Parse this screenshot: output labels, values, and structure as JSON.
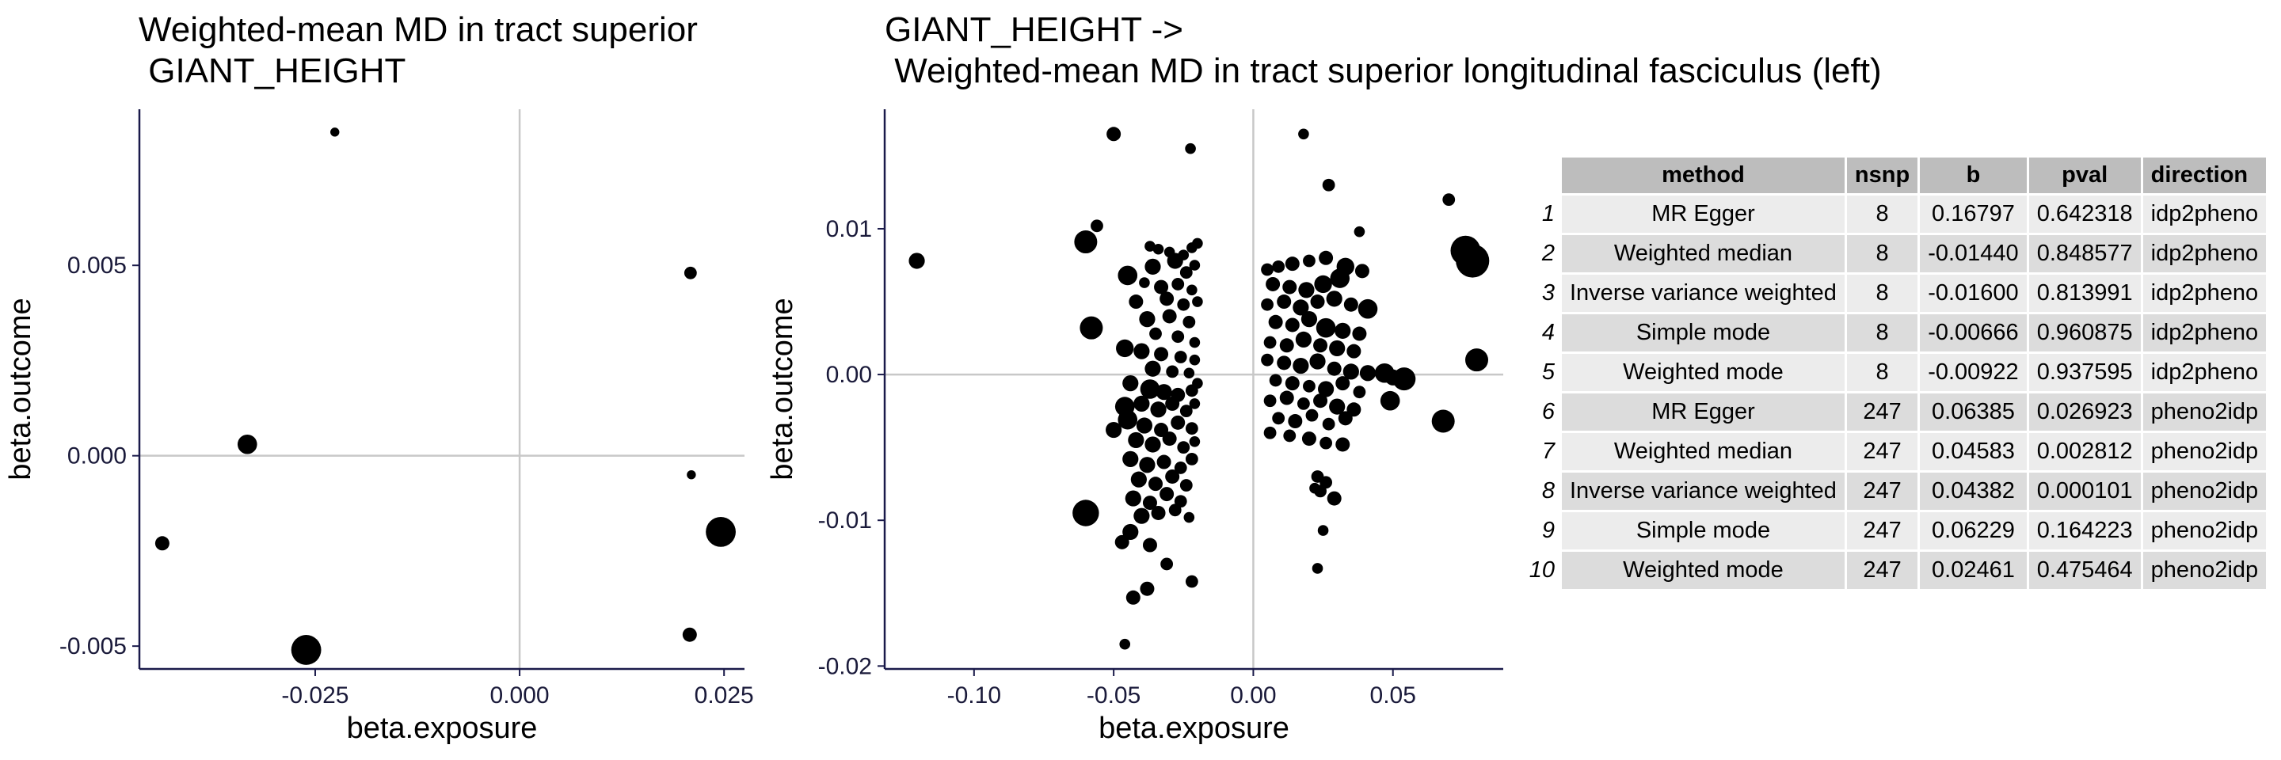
{
  "chart_data": [
    {
      "type": "scatter",
      "title": "Weighted-mean MD in tract superior\n GIANT_HEIGHT",
      "xlabel": "beta.exposure",
      "ylabel": "beta.outcome",
      "xlim": [
        -0.0465,
        0.0275
      ],
      "ylim": [
        -0.0056,
        0.0091
      ],
      "xticks": [
        -0.025,
        0.0,
        0.025
      ],
      "xtick_labels": [
        "-0.025",
        "0.000",
        "0.025"
      ],
      "yticks": [
        -0.005,
        0.0,
        0.005
      ],
      "ytick_labels": [
        "-0.005",
        "0.000",
        "0.005"
      ],
      "reference_lines": {
        "x": 0,
        "y": 0
      },
      "points": [
        {
          "x": -0.0226,
          "y": 0.0085,
          "size": 1
        },
        {
          "x": 0.0209,
          "y": 0.0048,
          "size": 2
        },
        {
          "x": -0.0333,
          "y": 0.0003,
          "size": 4
        },
        {
          "x": 0.021,
          "y": -0.0005,
          "size": 1
        },
        {
          "x": -0.0437,
          "y": -0.0023,
          "size": 2.5
        },
        {
          "x": 0.0246,
          "y": -0.002,
          "size": 7
        },
        {
          "x": 0.0208,
          "y": -0.0047,
          "size": 2.5
        },
        {
          "x": -0.0261,
          "y": -0.0051,
          "size": 7
        }
      ]
    },
    {
      "type": "scatter",
      "title": "GIANT_HEIGHT ->\n Weighted-mean MD in tract superior longitudinal fasciculus (left)",
      "xlabel": "beta.exposure",
      "ylabel": "beta.outcome",
      "xlim": [
        -0.132,
        0.0895
      ],
      "ylim": [
        -0.0202,
        0.0182
      ],
      "xticks": [
        -0.1,
        -0.05,
        0.0,
        0.05
      ],
      "xtick_labels": [
        "-0.10",
        "-0.05",
        "0.00",
        "0.05"
      ],
      "yticks": [
        -0.02,
        -0.01,
        0.0,
        0.01
      ],
      "ytick_labels": [
        "-0.02",
        "-0.01",
        "0.00",
        "0.01"
      ],
      "reference_lines": {
        "x": 0,
        "y": 0
      },
      "points": [
        {
          "x": -0.1205,
          "y": 0.0078,
          "size": 3
        },
        {
          "x": -0.05,
          "y": 0.0165,
          "size": 2.5
        },
        {
          "x": -0.0225,
          "y": 0.0155,
          "size": 1.5
        },
        {
          "x": 0.018,
          "y": 0.0165,
          "size": 1.5
        },
        {
          "x": 0.027,
          "y": 0.013,
          "size": 2
        },
        {
          "x": 0.07,
          "y": 0.012,
          "size": 2
        },
        {
          "x": -0.056,
          "y": 0.0102,
          "size": 2
        },
        {
          "x": -0.06,
          "y": 0.0091,
          "size": 5
        },
        {
          "x": 0.038,
          "y": 0.0098,
          "size": 1.5
        },
        {
          "x": 0.076,
          "y": 0.0085,
          "size": 7
        },
        {
          "x": 0.0785,
          "y": 0.0078,
          "size": 8
        },
        {
          "x": -0.058,
          "y": 0.0032,
          "size": 5
        },
        {
          "x": 0.08,
          "y": 0.001,
          "size": 5
        },
        {
          "x": -0.06,
          "y": -0.0095,
          "size": 6
        },
        {
          "x": 0.068,
          "y": -0.0032,
          "size": 5
        },
        {
          "x": 0.054,
          "y": -0.0003,
          "size": 5
        },
        {
          "x": 0.049,
          "y": -0.0018,
          "size": 4
        },
        {
          "x": 0.047,
          "y": 0.0001,
          "size": 4
        },
        {
          "x": 0.05,
          "y": -0.0002,
          "size": 3
        },
        {
          "x": -0.046,
          "y": -0.0185,
          "size": 1.5
        },
        {
          "x": -0.043,
          "y": -0.0153,
          "size": 2.5
        },
        {
          "x": -0.038,
          "y": -0.0147,
          "size": 2.5
        },
        {
          "x": -0.022,
          "y": -0.0142,
          "size": 2
        },
        {
          "x": -0.031,
          "y": -0.013,
          "size": 2
        },
        {
          "x": 0.023,
          "y": -0.0133,
          "size": 1.5
        },
        {
          "x": -0.047,
          "y": -0.0115,
          "size": 2.5
        },
        {
          "x": -0.044,
          "y": -0.0108,
          "size": 3
        },
        {
          "x": -0.037,
          "y": -0.0117,
          "size": 2.5
        },
        {
          "x": 0.025,
          "y": -0.0107,
          "size": 1.5
        },
        {
          "x": -0.05,
          "y": -0.0038,
          "size": 3
        },
        {
          "x": -0.039,
          "y": 0.0063,
          "size": 1.5
        },
        {
          "x": -0.037,
          "y": 0.0088,
          "size": 1.5
        },
        {
          "x": -0.034,
          "y": 0.0086,
          "size": 1.5
        },
        {
          "x": -0.03,
          "y": 0.0084,
          "size": 1.5
        },
        {
          "x": -0.025,
          "y": 0.0082,
          "size": 1.5
        },
        {
          "x": -0.022,
          "y": 0.0087,
          "size": 1.5
        },
        {
          "x": -0.02,
          "y": 0.009,
          "size": 1.5
        },
        {
          "x": -0.045,
          "y": 0.0068,
          "size": 4
        },
        {
          "x": -0.036,
          "y": 0.0074,
          "size": 3
        },
        {
          "x": -0.028,
          "y": 0.0078,
          "size": 3
        },
        {
          "x": -0.024,
          "y": 0.007,
          "size": 2
        },
        {
          "x": -0.021,
          "y": 0.0075,
          "size": 1.5
        },
        {
          "x": -0.033,
          "y": 0.006,
          "size": 2.5
        },
        {
          "x": -0.027,
          "y": 0.0062,
          "size": 2
        },
        {
          "x": -0.022,
          "y": 0.0058,
          "size": 1.5
        },
        {
          "x": -0.042,
          "y": 0.005,
          "size": 2.5
        },
        {
          "x": -0.031,
          "y": 0.0052,
          "size": 2.5
        },
        {
          "x": -0.025,
          "y": 0.0048,
          "size": 2
        },
        {
          "x": -0.02,
          "y": 0.005,
          "size": 1.5
        },
        {
          "x": -0.038,
          "y": 0.0038,
          "size": 3
        },
        {
          "x": -0.03,
          "y": 0.004,
          "size": 2.5
        },
        {
          "x": -0.023,
          "y": 0.0036,
          "size": 2
        },
        {
          "x": -0.035,
          "y": 0.0028,
          "size": 2
        },
        {
          "x": -0.027,
          "y": 0.0026,
          "size": 2
        },
        {
          "x": -0.021,
          "y": 0.0022,
          "size": 1.5
        },
        {
          "x": -0.046,
          "y": 0.0018,
          "size": 3.5
        },
        {
          "x": -0.04,
          "y": 0.0016,
          "size": 3
        },
        {
          "x": -0.033,
          "y": 0.0014,
          "size": 2.5
        },
        {
          "x": -0.026,
          "y": 0.0012,
          "size": 2
        },
        {
          "x": -0.021,
          "y": 0.001,
          "size": 1.5
        },
        {
          "x": -0.036,
          "y": 0.0004,
          "size": 3
        },
        {
          "x": -0.029,
          "y": 0.0002,
          "size": 2
        },
        {
          "x": -0.023,
          "y": 0.0001,
          "size": 1.5
        },
        {
          "x": -0.044,
          "y": -0.0006,
          "size": 3
        },
        {
          "x": -0.037,
          "y": -0.001,
          "size": 4
        },
        {
          "x": -0.032,
          "y": -0.0012,
          "size": 3
        },
        {
          "x": -0.027,
          "y": -0.0014,
          "size": 2.5
        },
        {
          "x": -0.022,
          "y": -0.0011,
          "size": 2
        },
        {
          "x": -0.02,
          "y": -0.0006,
          "size": 1.5
        },
        {
          "x": -0.046,
          "y": -0.0022,
          "size": 4
        },
        {
          "x": -0.04,
          "y": -0.002,
          "size": 3
        },
        {
          "x": -0.034,
          "y": -0.0024,
          "size": 3
        },
        {
          "x": -0.029,
          "y": -0.002,
          "size": 2.5
        },
        {
          "x": -0.024,
          "y": -0.0025,
          "size": 2
        },
        {
          "x": -0.021,
          "y": -0.002,
          "size": 1.5
        },
        {
          "x": -0.045,
          "y": -0.0031,
          "size": 4
        },
        {
          "x": -0.039,
          "y": -0.0035,
          "size": 3
        },
        {
          "x": -0.033,
          "y": -0.0038,
          "size": 2.5
        },
        {
          "x": -0.027,
          "y": -0.0033,
          "size": 2.5
        },
        {
          "x": -0.022,
          "y": -0.0037,
          "size": 2
        },
        {
          "x": -0.042,
          "y": -0.0045,
          "size": 3
        },
        {
          "x": -0.036,
          "y": -0.0048,
          "size": 3
        },
        {
          "x": -0.03,
          "y": -0.0044,
          "size": 2.5
        },
        {
          "x": -0.025,
          "y": -0.005,
          "size": 2
        },
        {
          "x": -0.021,
          "y": -0.0046,
          "size": 1.5
        },
        {
          "x": -0.044,
          "y": -0.0058,
          "size": 3
        },
        {
          "x": -0.038,
          "y": -0.0062,
          "size": 3
        },
        {
          "x": -0.032,
          "y": -0.006,
          "size": 2.5
        },
        {
          "x": -0.026,
          "y": -0.0064,
          "size": 2
        },
        {
          "x": -0.022,
          "y": -0.0058,
          "size": 2
        },
        {
          "x": -0.041,
          "y": -0.0072,
          "size": 3
        },
        {
          "x": -0.035,
          "y": -0.0075,
          "size": 2.5
        },
        {
          "x": -0.029,
          "y": -0.007,
          "size": 2.5
        },
        {
          "x": -0.024,
          "y": -0.0076,
          "size": 2
        },
        {
          "x": -0.043,
          "y": -0.0085,
          "size": 3
        },
        {
          "x": -0.037,
          "y": -0.0088,
          "size": 2.5
        },
        {
          "x": -0.031,
          "y": -0.0082,
          "size": 2.5
        },
        {
          "x": -0.026,
          "y": -0.0087,
          "size": 2
        },
        {
          "x": -0.04,
          "y": -0.0097,
          "size": 3
        },
        {
          "x": -0.034,
          "y": -0.0095,
          "size": 2.5
        },
        {
          "x": -0.028,
          "y": -0.0093,
          "size": 2
        },
        {
          "x": -0.023,
          "y": -0.0098,
          "size": 1.5
        },
        {
          "x": 0.005,
          "y": 0.0072,
          "size": 2
        },
        {
          "x": 0.009,
          "y": 0.0074,
          "size": 2
        },
        {
          "x": 0.014,
          "y": 0.0076,
          "size": 2.5
        },
        {
          "x": 0.02,
          "y": 0.0078,
          "size": 2
        },
        {
          "x": 0.026,
          "y": 0.008,
          "size": 2.5
        },
        {
          "x": 0.033,
          "y": 0.0074,
          "size": 3.5
        },
        {
          "x": 0.039,
          "y": 0.0071,
          "size": 2.5
        },
        {
          "x": 0.007,
          "y": 0.0062,
          "size": 2.5
        },
        {
          "x": 0.013,
          "y": 0.006,
          "size": 2.5
        },
        {
          "x": 0.019,
          "y": 0.0058,
          "size": 3
        },
        {
          "x": 0.025,
          "y": 0.0062,
          "size": 3.5
        },
        {
          "x": 0.031,
          "y": 0.0066,
          "size": 4
        },
        {
          "x": 0.005,
          "y": 0.0048,
          "size": 2
        },
        {
          "x": 0.011,
          "y": 0.005,
          "size": 2.5
        },
        {
          "x": 0.017,
          "y": 0.0046,
          "size": 3
        },
        {
          "x": 0.023,
          "y": 0.005,
          "size": 2.5
        },
        {
          "x": 0.029,
          "y": 0.0052,
          "size": 3
        },
        {
          "x": 0.035,
          "y": 0.0048,
          "size": 2.5
        },
        {
          "x": 0.041,
          "y": 0.0045,
          "size": 4
        },
        {
          "x": 0.008,
          "y": 0.0036,
          "size": 2.5
        },
        {
          "x": 0.014,
          "y": 0.0034,
          "size": 2.5
        },
        {
          "x": 0.02,
          "y": 0.0038,
          "size": 3
        },
        {
          "x": 0.026,
          "y": 0.0032,
          "size": 4
        },
        {
          "x": 0.032,
          "y": 0.003,
          "size": 3
        },
        {
          "x": 0.038,
          "y": 0.0028,
          "size": 2.5
        },
        {
          "x": 0.006,
          "y": 0.0022,
          "size": 2
        },
        {
          "x": 0.012,
          "y": 0.002,
          "size": 2.5
        },
        {
          "x": 0.018,
          "y": 0.0024,
          "size": 3
        },
        {
          "x": 0.024,
          "y": 0.002,
          "size": 2.5
        },
        {
          "x": 0.03,
          "y": 0.0018,
          "size": 3
        },
        {
          "x": 0.036,
          "y": 0.0016,
          "size": 2.5
        },
        {
          "x": 0.005,
          "y": 0.001,
          "size": 2
        },
        {
          "x": 0.011,
          "y": 0.0008,
          "size": 2.5
        },
        {
          "x": 0.017,
          "y": 0.0006,
          "size": 3
        },
        {
          "x": 0.023,
          "y": 0.0009,
          "size": 3
        },
        {
          "x": 0.029,
          "y": 0.0004,
          "size": 2.5
        },
        {
          "x": 0.035,
          "y": 0.0002,
          "size": 3
        },
        {
          "x": 0.041,
          "y": 0.0001,
          "size": 3
        },
        {
          "x": 0.008,
          "y": -0.0004,
          "size": 2
        },
        {
          "x": 0.014,
          "y": -0.0006,
          "size": 2.5
        },
        {
          "x": 0.02,
          "y": -0.0008,
          "size": 2
        },
        {
          "x": 0.026,
          "y": -0.001,
          "size": 3
        },
        {
          "x": 0.032,
          "y": -0.0006,
          "size": 2.5
        },
        {
          "x": 0.038,
          "y": -0.0012,
          "size": 2
        },
        {
          "x": 0.006,
          "y": -0.0018,
          "size": 2
        },
        {
          "x": 0.012,
          "y": -0.0016,
          "size": 2.5
        },
        {
          "x": 0.018,
          "y": -0.002,
          "size": 2
        },
        {
          "x": 0.024,
          "y": -0.0018,
          "size": 2.5
        },
        {
          "x": 0.03,
          "y": -0.0022,
          "size": 3
        },
        {
          "x": 0.036,
          "y": -0.0024,
          "size": 2.5
        },
        {
          "x": 0.009,
          "y": -0.003,
          "size": 2
        },
        {
          "x": 0.015,
          "y": -0.0032,
          "size": 2.5
        },
        {
          "x": 0.021,
          "y": -0.0028,
          "size": 2
        },
        {
          "x": 0.027,
          "y": -0.0034,
          "size": 2
        },
        {
          "x": 0.033,
          "y": -0.003,
          "size": 2.5
        },
        {
          "x": 0.006,
          "y": -0.004,
          "size": 2
        },
        {
          "x": 0.013,
          "y": -0.0042,
          "size": 2
        },
        {
          "x": 0.02,
          "y": -0.0044,
          "size": 2.5
        },
        {
          "x": 0.026,
          "y": -0.0047,
          "size": 2
        },
        {
          "x": 0.032,
          "y": -0.0048,
          "size": 2.5
        },
        {
          "x": 0.023,
          "y": -0.007,
          "size": 2
        },
        {
          "x": 0.026,
          "y": -0.0074,
          "size": 2
        },
        {
          "x": 0.029,
          "y": -0.0085,
          "size": 2.5
        },
        {
          "x": 0.024,
          "y": -0.008,
          "size": 2
        },
        {
          "x": 0.022,
          "y": -0.0078,
          "size": 1.5
        }
      ]
    }
  ],
  "table": {
    "columns": [
      "method",
      "nsnp",
      "b",
      "pval",
      "direction"
    ],
    "rows": [
      {
        "idx": "1",
        "method": "MR Egger",
        "nsnp": "8",
        "b": "0.16797",
        "pval": "0.642318",
        "direction": "idp2pheno"
      },
      {
        "idx": "2",
        "method": "Weighted median",
        "nsnp": "8",
        "b": "-0.01440",
        "pval": "0.848577",
        "direction": "idp2pheno"
      },
      {
        "idx": "3",
        "method": "Inverse variance weighted",
        "nsnp": "8",
        "b": "-0.01600",
        "pval": "0.813991",
        "direction": "idp2pheno"
      },
      {
        "idx": "4",
        "method": "Simple mode",
        "nsnp": "8",
        "b": "-0.00666",
        "pval": "0.960875",
        "direction": "idp2pheno"
      },
      {
        "idx": "5",
        "method": "Weighted mode",
        "nsnp": "8",
        "b": "-0.00922",
        "pval": "0.937595",
        "direction": "idp2pheno"
      },
      {
        "idx": "6",
        "method": "MR Egger",
        "nsnp": "247",
        "b": "0.06385",
        "pval": "0.026923",
        "direction": "pheno2idp"
      },
      {
        "idx": "7",
        "method": "Weighted median",
        "nsnp": "247",
        "b": "0.04583",
        "pval": "0.002812",
        "direction": "pheno2idp"
      },
      {
        "idx": "8",
        "method": "Inverse variance weighted",
        "nsnp": "247",
        "b": "0.04382",
        "pval": "0.000101",
        "direction": "pheno2idp"
      },
      {
        "idx": "9",
        "method": "Simple mode",
        "nsnp": "247",
        "b": "0.06229",
        "pval": "0.164223",
        "direction": "pheno2idp"
      },
      {
        "idx": "10",
        "method": "Weighted mode",
        "nsnp": "247",
        "b": "0.02461",
        "pval": "0.475464",
        "direction": "pheno2idp"
      }
    ]
  },
  "colors": {
    "point": "#000000",
    "axis_line": "#1a1a4a",
    "reference_line": "#c8c8c8",
    "header_bg": "#bdbdbd"
  }
}
